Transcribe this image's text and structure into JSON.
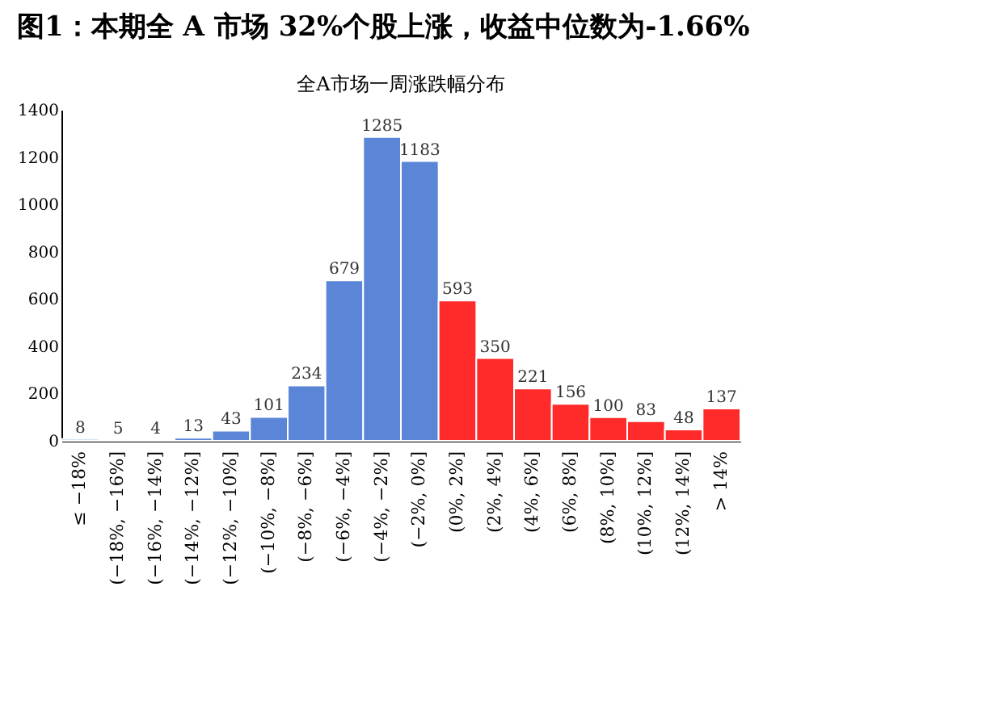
{
  "chart_data": {
    "type": "bar",
    "title": "图1：本期全 A 市场 32%个股上涨，收益中位数为-1.66%",
    "subtitle": "全A市场一周涨跌幅分布",
    "categories": [
      "≤ −18%",
      "(−18%, −16%]",
      "(−16%, −14%]",
      "(−14%, −12%]",
      "(−12%, −10%]",
      "(−10%, −8%]",
      "(−8%, −6%]",
      "(−6%, −4%]",
      "(−4%, −2%]",
      "(−2%, 0%]",
      "(0%, 2%]",
      "(2%, 4%]",
      "(4%, 6%]",
      "(6%, 8%]",
      "(8%, 10%]",
      "(10%, 12%]",
      "(12%, 14%]",
      "> 14%"
    ],
    "values": [
      8,
      5,
      4,
      13,
      43,
      101,
      234,
      679,
      1285,
      1183,
      593,
      350,
      221,
      156,
      100,
      83,
      48,
      137
    ],
    "colors": [
      "#5b85d6",
      "#5b85d6",
      "#5b85d6",
      "#5b85d6",
      "#5b85d6",
      "#5b85d6",
      "#5b85d6",
      "#5b85d6",
      "#5b85d6",
      "#5b85d6",
      "#ff2a2a",
      "#ff2a2a",
      "#ff2a2a",
      "#ff2a2a",
      "#ff2a2a",
      "#ff2a2a",
      "#ff2a2a",
      "#ff2a2a"
    ],
    "ylim": [
      0,
      1400
    ],
    "yticks": [
      0,
      200,
      400,
      600,
      800,
      1000,
      1200,
      1400
    ],
    "data_labels": true,
    "grid": false
  }
}
